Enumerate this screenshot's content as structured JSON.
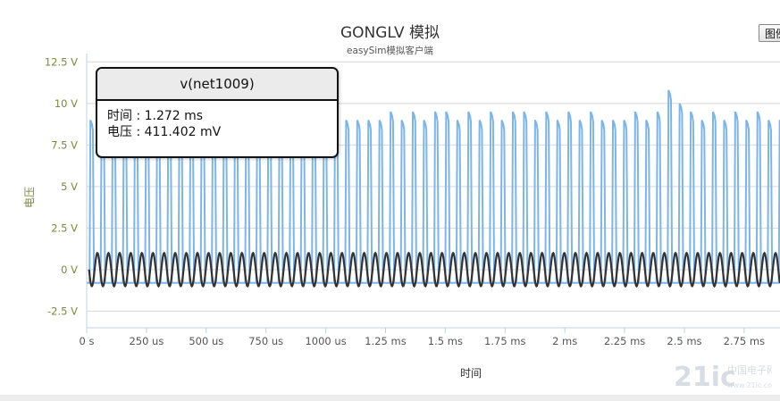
{
  "chart_data": {
    "type": "line",
    "title": "GONGLV 模拟",
    "subtitle": "easySim模拟客户端",
    "xlabel": "时间",
    "ylabel": "电压",
    "x_unit": "s",
    "y_unit": "V",
    "xlim": [
      0,
      0.0029
    ],
    "ylim": [
      -3.5,
      13.0
    ],
    "x_ticks": [
      {
        "value": 0,
        "label": "0 s"
      },
      {
        "value": 0.00025,
        "label": "250 us"
      },
      {
        "value": 0.0005,
        "label": "500 us"
      },
      {
        "value": 0.00075,
        "label": "750 us"
      },
      {
        "value": 0.001,
        "label": "1000 us"
      },
      {
        "value": 0.00125,
        "label": "1.25 ms"
      },
      {
        "value": 0.0015,
        "label": "1.5 ms"
      },
      {
        "value": 0.00175,
        "label": "1.75 ms"
      },
      {
        "value": 0.002,
        "label": "2 ms"
      },
      {
        "value": 0.00225,
        "label": "2.25 ms"
      },
      {
        "value": 0.0025,
        "label": "2.5 ms"
      },
      {
        "value": 0.00275,
        "label": "2.75 ms"
      }
    ],
    "y_ticks": [
      {
        "value": 12.5,
        "label": "12.5 V"
      },
      {
        "value": 10,
        "label": "10 V"
      },
      {
        "value": 7.5,
        "label": "7.5 V"
      },
      {
        "value": 5,
        "label": "5 V"
      },
      {
        "value": 2.5,
        "label": "2.5 V"
      },
      {
        "value": 0,
        "label": "0 V"
      },
      {
        "value": -2.5,
        "label": "-2.5 V"
      }
    ],
    "grid": true,
    "series": [
      {
        "name": "v(net1009)",
        "color": "#7cb5ec",
        "waveform": "pulse",
        "period_s": 4.65e-05,
        "start_s": 1.2e-05,
        "low_v": -0.8,
        "high_v": [
          9.0,
          9.0,
          9.0,
          9.0,
          9.0,
          9.0,
          9.0,
          9.0,
          9.0,
          9.0,
          9.0,
          9.0,
          9.0,
          9.0,
          9.0,
          9.0,
          9.0,
          9.0,
          9.0,
          9.0,
          9.0,
          9.0,
          9.0,
          9.0,
          9.0,
          9.0,
          9.0,
          9.5,
          9.0,
          9.5,
          9.0,
          9.5,
          9.5,
          9.0,
          9.5,
          9.0,
          9.5,
          9.0,
          9.5,
          9.5,
          9.0,
          9.5,
          9.0,
          9.5,
          9.0,
          9.5,
          9.0,
          9.0,
          9.0,
          9.5,
          9.0,
          9.5,
          10.8,
          10.0,
          9.5,
          9.0,
          9.5,
          9.0,
          9.5,
          9.0,
          9.5,
          9.0,
          9.0
        ]
      },
      {
        "name": "",
        "color": "#333333",
        "waveform": "sine",
        "period_s": 4.65e-05,
        "start_s": 1e-05,
        "amplitude_v": 1.0,
        "offset_v": 0
      }
    ]
  },
  "tooltip": {
    "series_name": "v(net1009)",
    "time_label": "时间",
    "time_value": "1.272 ms",
    "voltage_label": "电压",
    "voltage_value": "411.402 mV"
  },
  "export_button": "图例",
  "watermark": {
    "text": "21ic",
    "subtext": "中国电子网",
    "url": "www.21ic.com"
  }
}
